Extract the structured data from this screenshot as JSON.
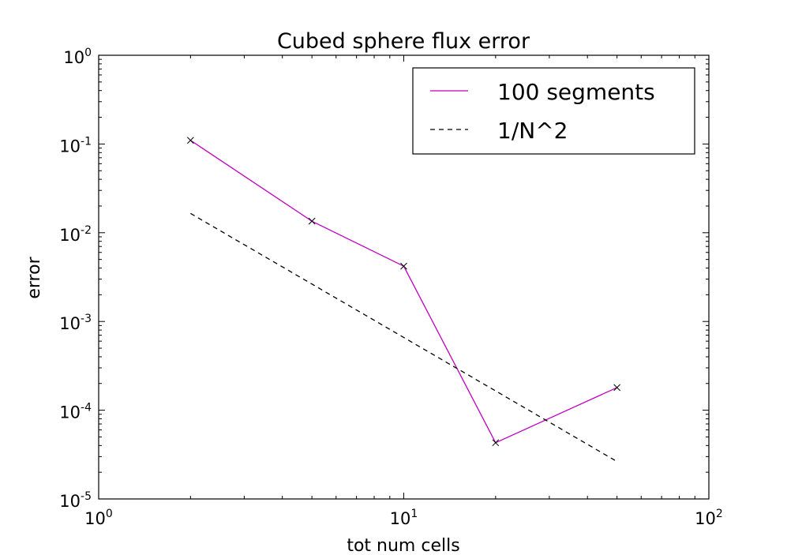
{
  "chart_data": {
    "type": "line",
    "title": "Cubed sphere flux error",
    "xlabel": "tot num cells",
    "ylabel": "error",
    "xscale": "log",
    "yscale": "log",
    "xlim": [
      1,
      100
    ],
    "ylim": [
      1e-05,
      1
    ],
    "grid": false,
    "legend_position": "top-right",
    "x_ticks": [
      {
        "base": "10",
        "exp": "0"
      },
      {
        "base": "10",
        "exp": "1"
      },
      {
        "base": "10",
        "exp": "2"
      }
    ],
    "y_ticks": [
      {
        "base": "10",
        "exp": "0"
      },
      {
        "base": "10",
        "exp": "-1"
      },
      {
        "base": "10",
        "exp": "-2"
      },
      {
        "base": "10",
        "exp": "-3"
      },
      {
        "base": "10",
        "exp": "-4"
      },
      {
        "base": "10",
        "exp": "-5"
      }
    ],
    "series": [
      {
        "name": "100 segments",
        "color": "#bf00bf",
        "style": "solid",
        "marker": "x",
        "x": [
          2,
          5,
          10,
          20,
          50
        ],
        "y": [
          0.11,
          0.0135,
          0.0042,
          4.3e-05,
          0.00018
        ]
      },
      {
        "name": "1/N^2",
        "color": "#000000",
        "style": "dashed",
        "marker": "none",
        "x": [
          2,
          50
        ],
        "y": [
          0.0165,
          2.64e-05
        ]
      }
    ]
  }
}
